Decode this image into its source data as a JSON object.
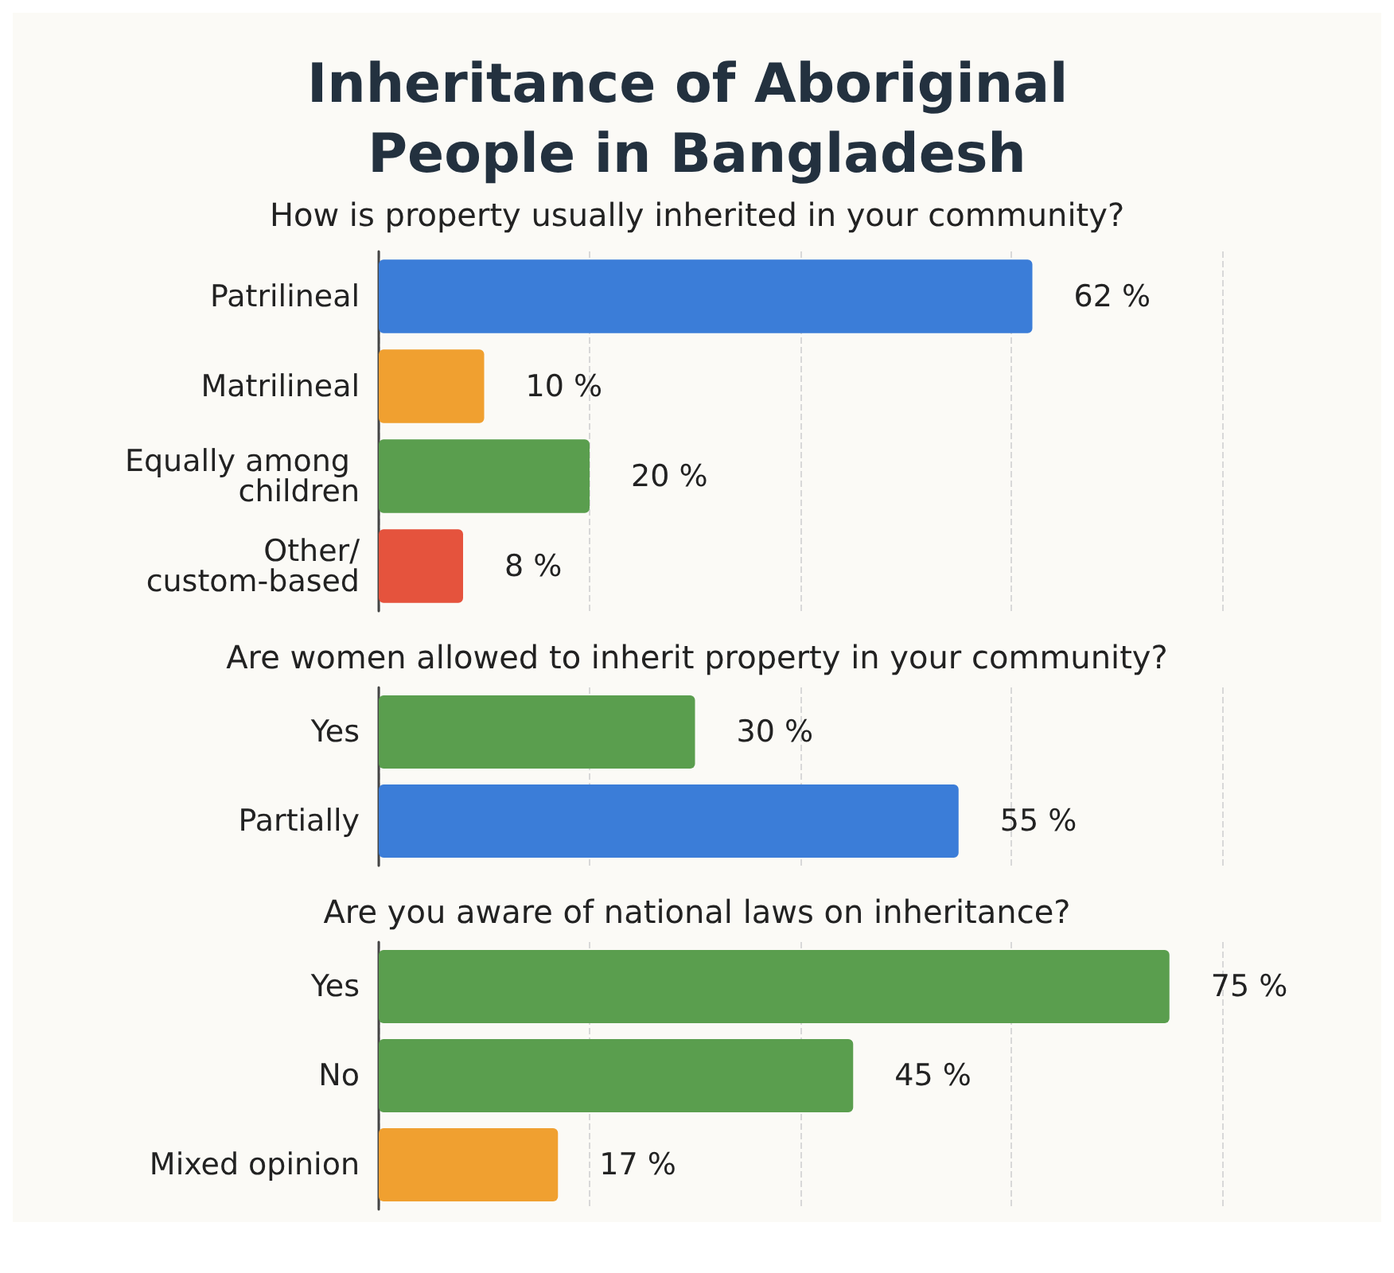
{
  "chart_data": [
    {
      "type": "bar",
      "orientation": "horizontal",
      "title": "Inheritance of Aboriginal People in Bangladesh",
      "subtitle": "How is property usually inherited in your community?",
      "categories": [
        "Patrilineal",
        "Matrilineal",
        "Equally among children",
        "Other/custom-based"
      ],
      "values": [
        62,
        10,
        20,
        8
      ],
      "colors": [
        "#3b7dd8",
        "#f0a030",
        "#5a9e4e",
        "#e5533d"
      ],
      "value_labels": [
        "62 %",
        "10 %",
        "20 %",
        "8 %"
      ],
      "xlim": [
        0,
        80
      ],
      "xticks": [
        {
          "value": 0,
          "label": null
        },
        {
          "value": 20,
          "label": null
        },
        {
          "value": 40,
          "label": null
        },
        {
          "value": 60,
          "label": null
        },
        {
          "value": 80,
          "label": null
        }
      ],
      "grid": "x",
      "tick_labels": "y"
    },
    {
      "type": "bar",
      "orientation": "horizontal",
      "title": "Are women allowed to inherit property in your community?",
      "categories": [
        "Yes",
        "Partially"
      ],
      "values": [
        30,
        55
      ],
      "colors": [
        "#5a9e4e",
        "#3b7dd8"
      ],
      "value_labels": [
        "30 %",
        "55 %"
      ],
      "xlim": [
        0,
        80
      ],
      "xticks": [
        {
          "value": 0,
          "label": null
        },
        {
          "value": 20,
          "label": null
        },
        {
          "value": 40,
          "label": null
        },
        {
          "value": 60,
          "label": null
        },
        {
          "value": 80,
          "label": null
        }
      ],
      "grid": "x",
      "tick_labels": "y"
    },
    {
      "type": "bar",
      "orientation": "horizontal",
      "title": "Are you aware of national laws on inheritance?",
      "categories": [
        "Yes",
        "No",
        "Mixed opinion"
      ],
      "values": [
        75,
        45,
        17
      ],
      "colors": [
        "#5a9e4e",
        "#5a9e4e",
        "#f0a030"
      ],
      "value_labels": [
        "75 %",
        "45 %",
        "17 %"
      ],
      "xlim": [
        0,
        80
      ],
      "xticks": [
        {
          "value": 0,
          "label": null
        },
        {
          "value": 20,
          "label": null
        },
        {
          "value": 40,
          "label": null
        },
        {
          "value": 60,
          "label": null
        },
        {
          "value": 80,
          "label": null
        }
      ],
      "grid": "x",
      "tick_labels": "y"
    }
  ]
}
